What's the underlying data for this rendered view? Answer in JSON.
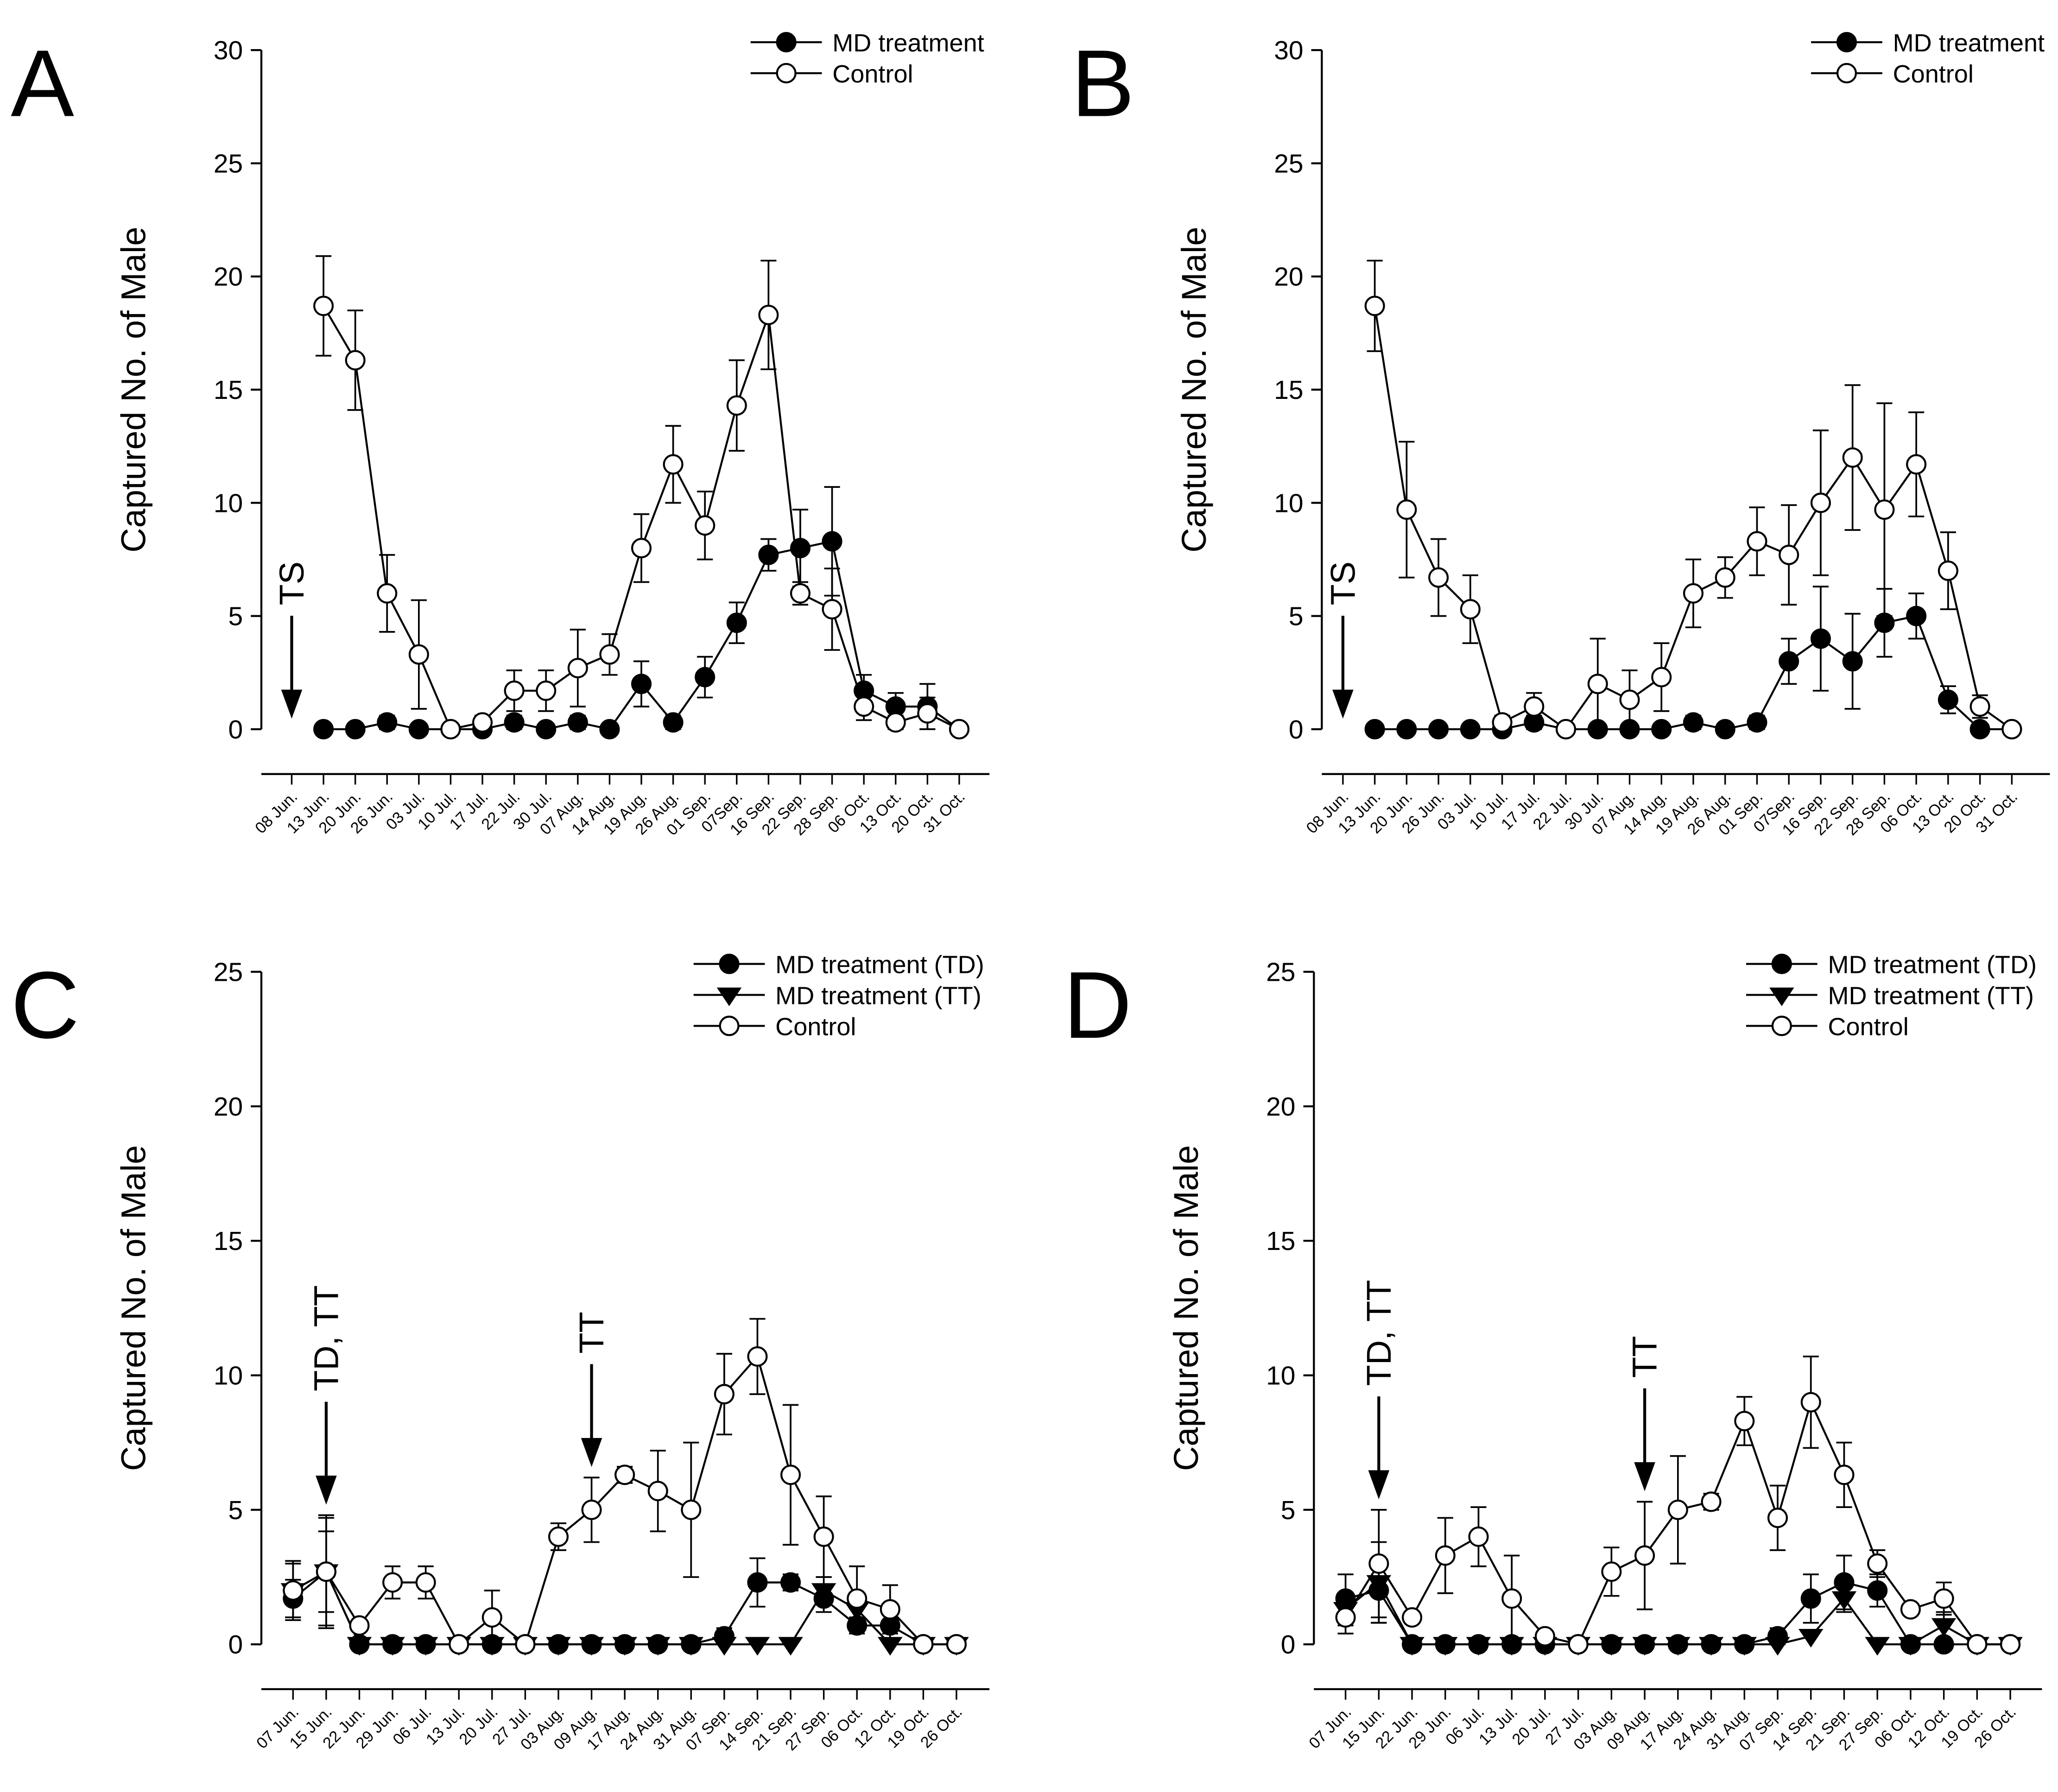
{
  "chart_data": [
    {
      "type": "line",
      "panel_label": "A",
      "ylabel": "Captured No. of Male",
      "legend": "upper right",
      "categories": [
        "08 Jun.",
        "13 Jun.",
        "20 Jun.",
        "26 Jun.",
        "03 Jul.",
        "10 Jul.",
        "17 Jul.",
        "22 Jul.",
        "30 Jul.",
        "07 Aug.",
        "14 Aug.",
        "19 Aug.",
        "26 Aug.",
        "01 Sep.",
        "07Sep.",
        "16 Sep.",
        "22 Sep.",
        "28 Sep.",
        "06 Oct.",
        "13 Oct.",
        "20 Oct.",
        "31 Oct."
      ],
      "ylim": [
        0,
        30
      ],
      "yticks": [
        0,
        5,
        10,
        15,
        20,
        25,
        30
      ],
      "series": [
        {
          "name": "MD treatment",
          "color": "#000000",
          "marker": "circle",
          "marker_fill": "#000000",
          "values": [
            null,
            0,
            0,
            0.3,
            0,
            0,
            0,
            0.3,
            0,
            0.3,
            0,
            2,
            0.3,
            2.3,
            4.7,
            7.7,
            8,
            8.3,
            1.7,
            1,
            1,
            0
          ],
          "errors": [
            null,
            null,
            null,
            0.3,
            null,
            null,
            null,
            0.3,
            null,
            0.3,
            null,
            1,
            0.3,
            0.9,
            0.9,
            0.7,
            1.7,
            2.4,
            0.7,
            0.6,
            1,
            null
          ]
        },
        {
          "name": "Control",
          "color": "#000000",
          "marker": "circle",
          "marker_fill": "#ffffff",
          "values": [
            null,
            18.7,
            16.3,
            6,
            3.3,
            0,
            0.3,
            1.7,
            1.7,
            2.7,
            3.3,
            8,
            11.7,
            9,
            14.3,
            18.3,
            6,
            5.3,
            1,
            0.3,
            0.7,
            0
          ],
          "errors": [
            null,
            2.2,
            2.2,
            1.7,
            2.4,
            null,
            0.3,
            0.9,
            0.9,
            1.7,
            0.9,
            1.5,
            1.7,
            1.5,
            2,
            2.4,
            0.5,
            1.8,
            0.6,
            0.3,
            0.7,
            null
          ]
        }
      ],
      "annotations": [
        {
          "text": "TS",
          "category": "08 Jun."
        }
      ]
    },
    {
      "type": "line",
      "panel_label": "B",
      "ylabel": "Captured No. of Male",
      "legend": "upper right",
      "categories": [
        "08 Jun.",
        "13 Jun.",
        "20 Jun.",
        "26 Jun.",
        "03 Jul.",
        "10 Jul.",
        "17 Jul.",
        "22 Jul.",
        "30 Jul.",
        "07 Aug.",
        "14 Aug.",
        "19 Aug.",
        "26 Aug.",
        "01 Sep.",
        "07Sep.",
        "16 Sep.",
        "22 Sep.",
        "28 Sep.",
        "06 Oct.",
        "13 Oct.",
        "20 Oct.",
        "31 Oct."
      ],
      "ylim": [
        0,
        30
      ],
      "yticks": [
        0,
        5,
        10,
        15,
        20,
        25,
        30
      ],
      "series": [
        {
          "name": "MD treatment",
          "color": "#000000",
          "marker": "circle",
          "marker_fill": "#000000",
          "values": [
            null,
            0,
            0,
            0,
            0,
            0,
            0.3,
            0,
            0,
            0,
            0,
            0.3,
            0,
            0.3,
            3,
            4,
            3,
            4.7,
            5,
            1.3,
            0,
            0
          ],
          "errors": [
            null,
            null,
            null,
            null,
            null,
            null,
            0.3,
            null,
            null,
            null,
            null,
            0.3,
            null,
            0.3,
            1,
            2.3,
            2.1,
            1.5,
            1,
            0.6,
            null,
            null
          ]
        },
        {
          "name": "Control",
          "color": "#000000",
          "marker": "circle",
          "marker_fill": "#ffffff",
          "values": [
            null,
            18.7,
            9.7,
            6.7,
            5.3,
            0.3,
            1,
            0,
            2,
            1.3,
            2.3,
            6,
            6.7,
            8.3,
            7.7,
            10,
            12,
            9.7,
            11.7,
            7,
            1,
            0
          ],
          "errors": [
            null,
            2,
            3,
            1.7,
            1.5,
            0.3,
            0.6,
            null,
            2,
            1.3,
            1.5,
            1.5,
            0.9,
            1.5,
            2.2,
            3.2,
            3.2,
            4.7,
            2.3,
            1.7,
            0.5,
            null
          ]
        }
      ],
      "annotations": [
        {
          "text": "TS",
          "category": "08 Jun."
        }
      ]
    },
    {
      "type": "line",
      "panel_label": "C",
      "ylabel": "Captured No. of Male",
      "legend": "upper right",
      "categories": [
        "07 Jun.",
        "15 Jun.",
        "22 Jun.",
        "29 Jun.",
        "06 Jul.",
        "13 Jul.",
        "20 Jul.",
        "27 Jul.",
        "03 Aug.",
        "09 Aug.",
        "17 Aug.",
        "24 Aug.",
        "31 Aug.",
        "07 Sep.",
        "14 Sep.",
        "21 Sep.",
        "27 Sep.",
        "06 Oct.",
        "12 Oct.",
        "19 Oct.",
        "26 Oct."
      ],
      "ylim": [
        0,
        25
      ],
      "yticks": [
        0,
        5,
        10,
        15,
        20,
        25
      ],
      "series": [
        {
          "name": "MD treatment (TD)",
          "color": "#000000",
          "marker": "circle",
          "marker_fill": "#000000",
          "values": [
            1.7,
            2.7,
            0,
            0,
            0,
            0,
            0,
            0,
            0,
            0,
            0,
            0,
            0,
            0.3,
            2.3,
            2.3,
            1.7,
            0.7,
            0.7,
            0,
            0
          ],
          "errors": [
            0.7,
            2,
            null,
            null,
            null,
            null,
            null,
            null,
            null,
            null,
            null,
            null,
            null,
            0.3,
            0.9,
            0.3,
            0.5,
            0.3,
            0.5,
            null,
            null
          ]
        },
        {
          "name": "MD treatment (TT)",
          "color": "#000000",
          "marker": "triangle",
          "marker_fill": "#000000",
          "values": [
            2,
            2.7,
            0,
            0,
            0,
            0,
            0,
            0,
            0,
            0,
            0,
            0,
            0,
            0,
            0,
            0,
            2,
            1.3,
            0,
            0,
            0
          ],
          "errors": [
            1.1,
            2.1,
            null,
            null,
            null,
            null,
            null,
            null,
            null,
            null,
            null,
            null,
            null,
            null,
            null,
            null,
            0.5,
            0.5,
            null,
            null,
            null
          ]
        },
        {
          "name": "Control",
          "color": "#000000",
          "marker": "circle",
          "marker_fill": "#ffffff",
          "values": [
            2,
            2.7,
            0.7,
            2.3,
            2.3,
            0,
            1,
            0,
            4,
            5,
            6.3,
            5.7,
            5,
            9.3,
            10.7,
            6.3,
            4,
            1.7,
            1.3,
            0,
            0
          ],
          "errors": [
            1,
            1.5,
            null,
            0.6,
            0.6,
            null,
            1,
            null,
            0.5,
            1.2,
            0.3,
            1.5,
            2.5,
            1.5,
            1.4,
            2.6,
            1.5,
            1.2,
            0.9,
            null,
            null
          ]
        }
      ],
      "annotations": [
        {
          "text": "TD, TT",
          "category": "15 Jun."
        },
        {
          "text": "TT",
          "category": "09 Aug."
        }
      ]
    },
    {
      "type": "line",
      "panel_label": "D",
      "ylabel": "Captured No. of Male",
      "legend": "upper right",
      "categories": [
        "07 Jun.",
        "15 Jun.",
        "22 Jun.",
        "29 Jun.",
        "06 Jul.",
        "13 Jul.",
        "20 Jul.",
        "27 Jul.",
        "03 Aug.",
        "09 Aug.",
        "17 Aug.",
        "24 Aug.",
        "31 Aug.",
        "07 Sep.",
        "14 Sep.",
        "21 Sep.",
        "27 Sep.",
        "06 Oct.",
        "12 Oct.",
        "19 Oct.",
        "26 Oct."
      ],
      "ylim": [
        0,
        25
      ],
      "yticks": [
        0,
        5,
        10,
        15,
        20,
        25
      ],
      "series": [
        {
          "name": "MD treatment (TD)",
          "color": "#000000",
          "marker": "circle",
          "marker_fill": "#000000",
          "values": [
            1.7,
            2,
            0,
            0,
            0,
            0,
            0,
            0,
            0,
            0,
            0,
            0,
            0,
            0.3,
            1.7,
            2.3,
            2,
            0,
            0,
            0,
            0
          ],
          "errors": [
            0.9,
            1.2,
            null,
            null,
            null,
            null,
            null,
            null,
            null,
            null,
            null,
            null,
            null,
            0.3,
            0.9,
            1,
            0.6,
            null,
            null,
            null,
            null
          ]
        },
        {
          "name": "MD treatment (TT)",
          "color": "#000000",
          "marker": "triangle",
          "marker_fill": "#000000",
          "values": [
            1.3,
            2.3,
            0,
            0,
            0,
            0,
            0,
            0,
            0,
            0,
            0,
            0,
            0,
            0,
            0.3,
            1.7,
            0,
            0,
            0.7,
            0,
            0
          ],
          "errors": [
            0.6,
            1.5,
            null,
            null,
            null,
            null,
            null,
            null,
            null,
            null,
            null,
            null,
            null,
            null,
            null,
            0.5,
            null,
            null,
            0.5,
            null,
            null
          ]
        },
        {
          "name": "Control",
          "color": "#000000",
          "marker": "circle",
          "marker_fill": "#ffffff",
          "values": [
            1,
            3,
            1,
            3.3,
            4,
            1.7,
            0.3,
            0,
            2.7,
            3.3,
            5,
            5.3,
            8.3,
            4.7,
            9,
            6.3,
            3,
            1.3,
            1.7,
            0,
            0
          ],
          "errors": [
            0.6,
            2,
            null,
            1.4,
            1.1,
            1.6,
            null,
            null,
            0.9,
            2,
            2,
            0.3,
            0.9,
            1.2,
            1.7,
            1.2,
            0.5,
            null,
            0.6,
            null,
            null
          ]
        }
      ],
      "annotations": [
        {
          "text": "TD, TT",
          "category": "15 Jun."
        },
        {
          "text": "TT",
          "category": "09 Aug."
        }
      ]
    }
  ]
}
